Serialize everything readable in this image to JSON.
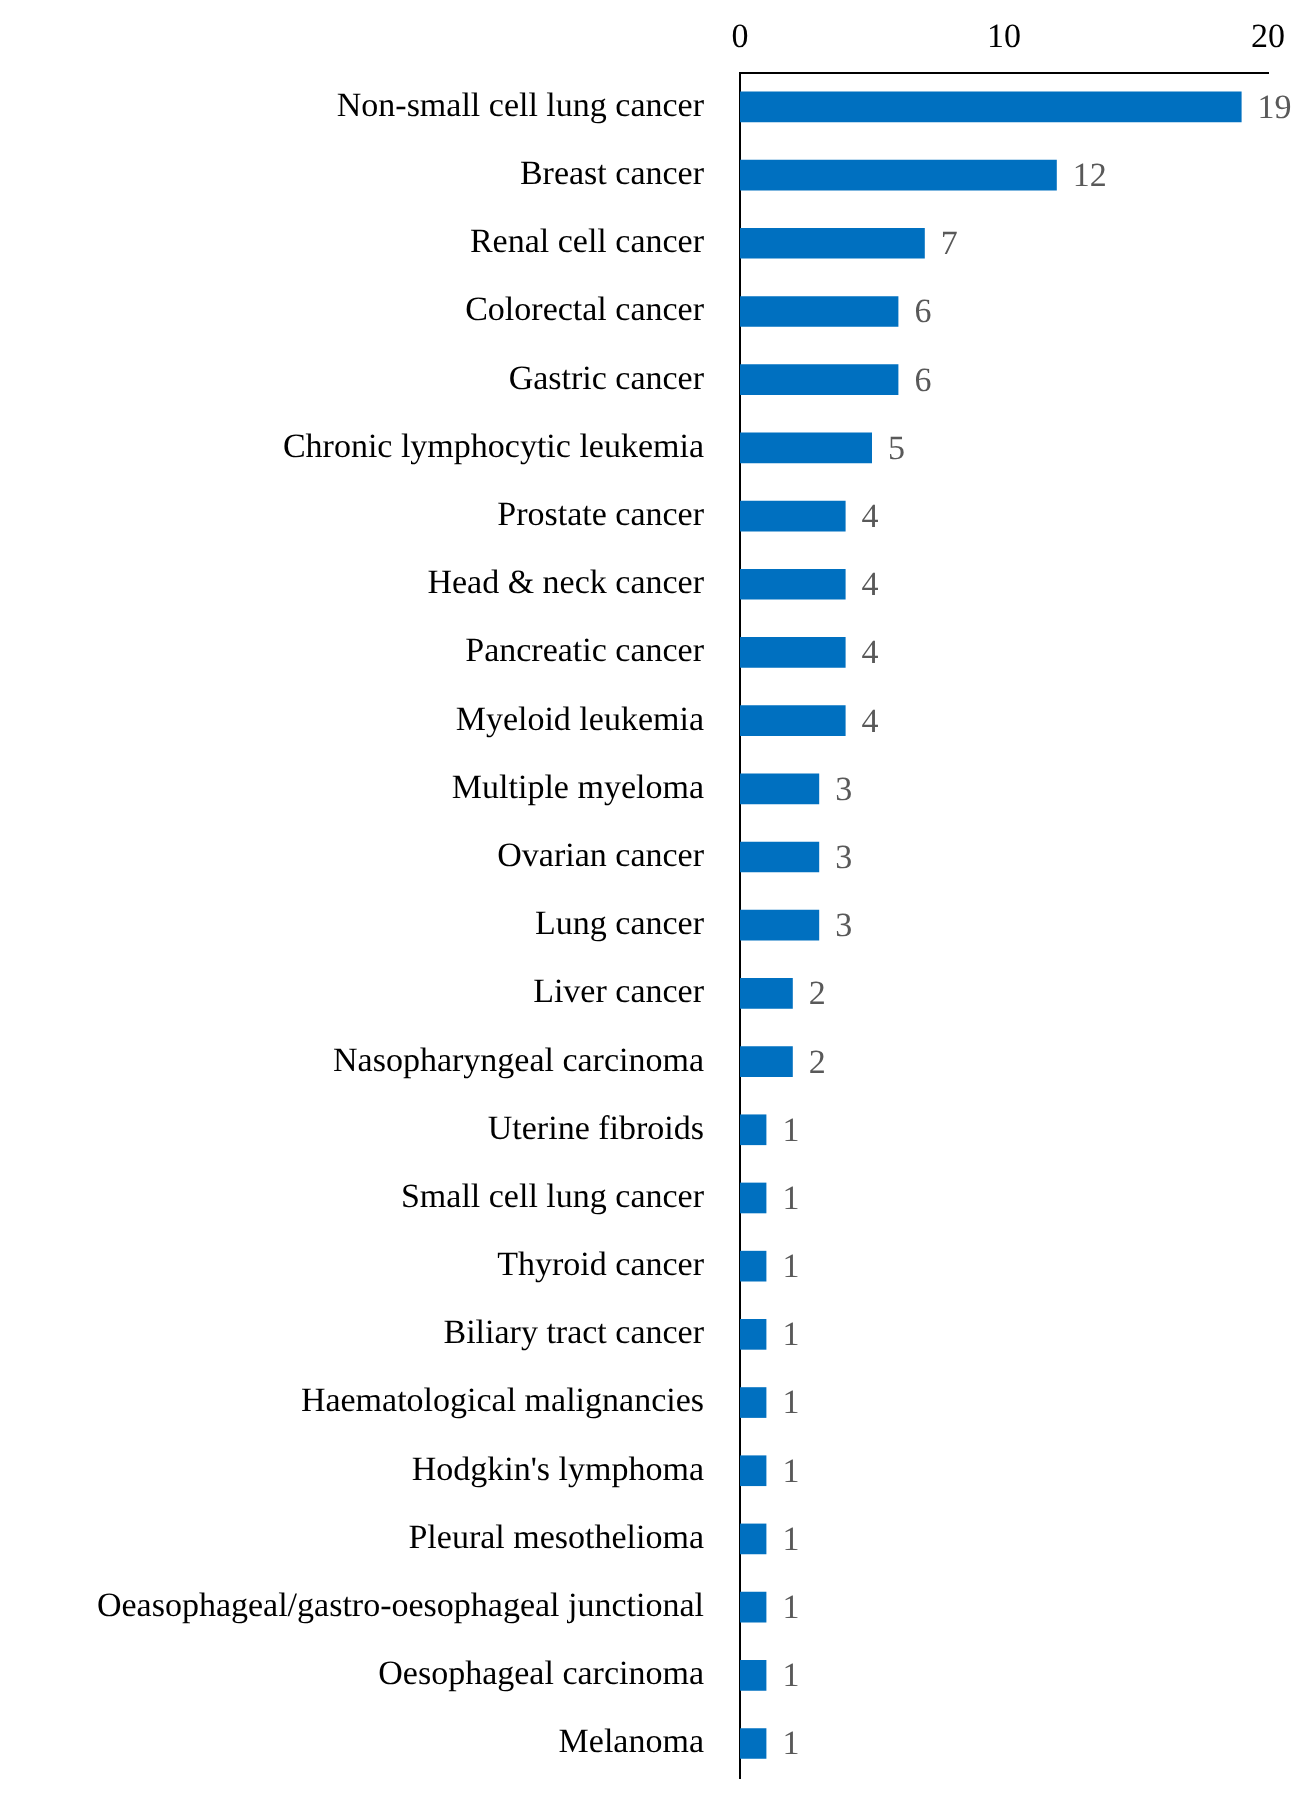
{
  "chart_data": {
    "type": "bar",
    "orientation": "horizontal",
    "categories": [
      "Non-small cell lung cancer",
      "Breast cancer",
      "Renal cell cancer",
      "Colorectal cancer",
      "Gastric cancer",
      "Chronic lymphocytic leukemia",
      "Prostate cancer",
      "Head & neck cancer",
      "Pancreatic cancer",
      "Myeloid leukemia",
      "Multiple myeloma",
      "Ovarian cancer",
      "Lung cancer",
      "Liver cancer",
      "Nasopharyngeal carcinoma",
      "Uterine fibroids",
      "Small cell lung cancer",
      "Thyroid cancer",
      "Biliary tract cancer",
      "Haematological malignancies",
      "Hodgkin's lymphoma",
      "Pleural mesothelioma",
      "Oeasophageal/gastro-oesophageal junctional",
      "Oesophageal carcinoma",
      "Melanoma"
    ],
    "values": [
      19,
      12,
      7,
      6,
      6,
      5,
      4,
      4,
      4,
      4,
      3,
      3,
      3,
      2,
      2,
      1,
      1,
      1,
      1,
      1,
      1,
      1,
      1,
      1,
      1
    ],
    "color": "#0070c0",
    "xlim": [
      0,
      20
    ],
    "xticks": [
      0,
      10,
      20
    ],
    "data_labels": true,
    "grid": false,
    "legend": false
  }
}
